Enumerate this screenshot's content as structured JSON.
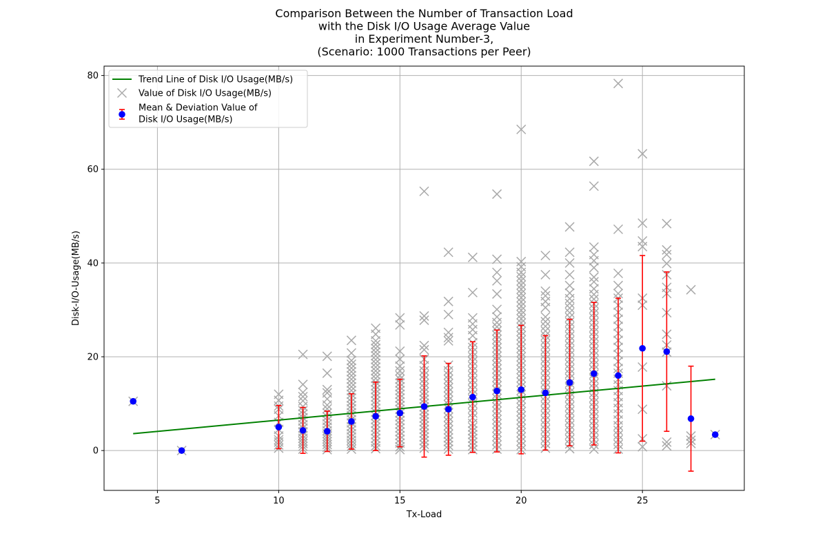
{
  "chart_data": {
    "type": "scatter",
    "title_lines": [
      "Comparison Between the Number of Transaction Load",
      "with the Disk I/O Usage Average Value",
      "in Experiment Number-3,",
      "(Scenario: 1000 Transactions per Peer)"
    ],
    "xlabel": "Tx-Load",
    "ylabel": "Disk-I/O-Usage(MB/s)",
    "xlim": [
      2.8,
      29.2
    ],
    "ylim": [
      -8.5,
      82
    ],
    "xticks": [
      5,
      10,
      15,
      20,
      25
    ],
    "yticks": [
      0,
      20,
      40,
      60,
      80
    ],
    "grid": true,
    "legend_position": "upper-left",
    "legend": [
      {
        "label": "Trend Line of Disk I/O Usage(MB/s)",
        "kind": "line",
        "color": "#008000"
      },
      {
        "label": "Value of Disk I/O Usage(MB/s)",
        "kind": "x-marker",
        "color": "#a9a9a9"
      },
      {
        "label_lines": [
          "Mean & Deviation Value of",
          "Disk I/O Usage(MB/s)"
        ],
        "kind": "errorbar",
        "color": "#0000ff",
        "error_color": "#ff0000"
      }
    ],
    "trend_line": {
      "x": [
        4,
        28
      ],
      "y": [
        3.6,
        15.2
      ],
      "color": "#008000"
    },
    "mean_deviation": [
      {
        "x": 4,
        "mean": 10.5,
        "std": 0
      },
      {
        "x": 6,
        "mean": 0,
        "std": 0
      },
      {
        "x": 10,
        "mean": 5.0,
        "std": 4.6
      },
      {
        "x": 11,
        "mean": 4.3,
        "std": 4.9
      },
      {
        "x": 12,
        "mean": 4.1,
        "std": 4.3
      },
      {
        "x": 13,
        "mean": 6.2,
        "std": 5.9
      },
      {
        "x": 14,
        "mean": 7.3,
        "std": 7.3
      },
      {
        "x": 15,
        "mean": 8.0,
        "std": 7.2
      },
      {
        "x": 16,
        "mean": 9.4,
        "std": 10.8
      },
      {
        "x": 17,
        "mean": 8.8,
        "std": 9.8
      },
      {
        "x": 18,
        "mean": 11.4,
        "std": 11.8
      },
      {
        "x": 19,
        "mean": 12.7,
        "std": 13.0
      },
      {
        "x": 20,
        "mean": 13.0,
        "std": 13.7
      },
      {
        "x": 21,
        "mean": 12.3,
        "std": 12.2
      },
      {
        "x": 22,
        "mean": 14.5,
        "std": 13.5
      },
      {
        "x": 23,
        "mean": 16.4,
        "std": 15.2
      },
      {
        "x": 24,
        "mean": 16.0,
        "std": 16.5
      },
      {
        "x": 25,
        "mean": 21.8,
        "std": 19.8
      },
      {
        "x": 26,
        "mean": 21.1,
        "std": 17.0
      },
      {
        "x": 27,
        "mean": 6.8,
        "std": 11.2
      },
      {
        "x": 28,
        "mean": 3.4,
        "std": 0
      }
    ],
    "value_points": [
      {
        "x": 4,
        "y": [
          10.5
        ]
      },
      {
        "x": 6,
        "y": [
          0
        ]
      },
      {
        "x": 10,
        "y": [
          0.5,
          1.2,
          1.8,
          2.3,
          3.1,
          4.5,
          6.0,
          7.4,
          8.8,
          9.5,
          10.7,
          12.0
        ]
      },
      {
        "x": 11,
        "y": [
          0.3,
          0.9,
          1.5,
          2.0,
          2.6,
          3.2,
          4.0,
          4.8,
          5.5,
          6.3,
          7.0,
          7.8,
          8.5,
          9.4,
          10.6,
          11.5,
          12.4,
          14.1,
          20.5
        ]
      },
      {
        "x": 12,
        "y": [
          0.2,
          0.7,
          1.3,
          1.9,
          2.5,
          3.0,
          3.6,
          4.2,
          5.0,
          5.7,
          6.4,
          7.2,
          8.0,
          8.9,
          9.7,
          11.0,
          12.3,
          13.0,
          16.5,
          20.1
        ]
      },
      {
        "x": 13,
        "y": [
          0.3,
          0.9,
          1.5,
          2.2,
          2.9,
          3.6,
          4.4,
          5.1,
          5.9,
          6.6,
          7.4,
          8.1,
          8.9,
          9.6,
          10.4,
          11.2,
          12.0,
          12.8,
          13.6,
          14.4,
          15.2,
          16.0,
          16.8,
          17.6,
          18.4,
          19.2,
          20.8,
          23.5
        ]
      },
      {
        "x": 14,
        "y": [
          0.4,
          1.0,
          1.8,
          2.6,
          3.4,
          4.2,
          5.0,
          5.8,
          6.6,
          7.4,
          8.2,
          9.0,
          9.8,
          10.6,
          11.4,
          12.2,
          13.0,
          13.8,
          14.6,
          15.4,
          16.2,
          17.0,
          17.8,
          18.6,
          19.4,
          20.2,
          21.0,
          21.8,
          22.6,
          23.4,
          24.8,
          26.1
        ]
      },
      {
        "x": 15,
        "y": [
          0.2,
          0.8,
          1.6,
          2.4,
          3.2,
          4.0,
          4.8,
          5.6,
          6.4,
          7.2,
          8.0,
          8.8,
          9.6,
          10.4,
          11.2,
          12.0,
          12.8,
          13.6,
          14.4,
          15.2,
          16.0,
          17.0,
          18.0,
          19.5,
          21.2,
          26.8,
          28.3
        ]
      },
      {
        "x": 16,
        "y": [
          0.5,
          1.3,
          2.1,
          2.9,
          3.7,
          4.5,
          5.3,
          6.1,
          6.9,
          7.7,
          8.5,
          9.3,
          10.1,
          10.9,
          11.7,
          12.5,
          13.4,
          14.3,
          15.2,
          16.1,
          17.0,
          18.1,
          19.5,
          21.5,
          22.4,
          27.8,
          28.7,
          55.3
        ]
      },
      {
        "x": 17,
        "y": [
          0.3,
          1.1,
          1.9,
          2.7,
          3.5,
          4.4,
          5.3,
          6.2,
          7.1,
          8.0,
          8.9,
          9.8,
          10.7,
          11.6,
          12.5,
          13.4,
          14.3,
          15.2,
          16.1,
          17.0,
          18.2,
          23.4,
          24.1,
          25.2,
          29.0,
          31.8,
          42.3
        ]
      },
      {
        "x": 18,
        "y": [
          0.2,
          1.0,
          1.8,
          2.6,
          3.4,
          4.2,
          5.0,
          5.8,
          7.0,
          8.0,
          9.0,
          10.0,
          11.0,
          12.0,
          13.0,
          14.0,
          15.0,
          16.0,
          17.0,
          18.0,
          19.0,
          20.0,
          21.0,
          22.0,
          23.0,
          24.5,
          25.8,
          27.0,
          28.3,
          33.7,
          41.2
        ]
      },
      {
        "x": 19,
        "y": [
          0.3,
          1.2,
          2.1,
          3.0,
          3.9,
          4.8,
          5.7,
          6.6,
          7.5,
          8.4,
          9.3,
          10.2,
          11.1,
          12.0,
          12.9,
          13.8,
          14.7,
          15.6,
          16.5,
          17.4,
          18.3,
          19.2,
          20.1,
          21.0,
          21.9,
          22.8,
          23.7,
          24.6,
          25.5,
          26.4,
          27.3,
          28.5,
          30.1,
          33.4,
          36.2,
          38.0,
          40.8,
          54.7
        ]
      },
      {
        "x": 20,
        "y": [
          0.2,
          1.1,
          2.0,
          2.9,
          3.8,
          4.7,
          5.6,
          6.5,
          7.4,
          8.3,
          9.2,
          10.1,
          11.0,
          11.9,
          12.8,
          13.7,
          14.6,
          15.5,
          16.4,
          17.3,
          18.2,
          19.1,
          20.0,
          20.9,
          21.8,
          22.7,
          23.6,
          24.5,
          25.4,
          26.3,
          27.2,
          28.1,
          29.0,
          29.9,
          30.8,
          31.7,
          32.6,
          33.5,
          34.4,
          35.3,
          36.2,
          37.1,
          38.0,
          39.2,
          40.3,
          68.5
        ]
      },
      {
        "x": 21,
        "y": [
          0.5,
          1.5,
          2.5,
          3.5,
          4.5,
          5.5,
          6.5,
          7.5,
          8.5,
          9.5,
          10.5,
          11.5,
          12.5,
          13.5,
          14.5,
          15.5,
          16.5,
          17.5,
          18.5,
          19.5,
          20.5,
          21.5,
          22.5,
          23.5,
          24.5,
          25.5,
          26.5,
          27.5,
          28.5,
          30.5,
          31.8,
          33.0,
          34.0,
          37.5,
          41.6
        ]
      },
      {
        "x": 22,
        "y": [
          0.4,
          1.4,
          2.4,
          3.4,
          4.4,
          5.4,
          6.4,
          7.4,
          8.4,
          9.4,
          10.4,
          11.4,
          12.4,
          13.4,
          14.4,
          15.4,
          16.4,
          17.4,
          18.4,
          19.4,
          20.4,
          21.4,
          22.4,
          23.4,
          24.4,
          25.4,
          26.4,
          27.4,
          28.4,
          29.4,
          30.4,
          31.4,
          32.4,
          33.6,
          35.2,
          37.5,
          40.0,
          42.3,
          47.7
        ]
      },
      {
        "x": 23,
        "y": [
          0.3,
          1.3,
          2.3,
          3.3,
          4.3,
          5.3,
          6.3,
          7.3,
          8.3,
          9.3,
          10.3,
          11.3,
          12.3,
          13.3,
          14.3,
          15.3,
          16.3,
          17.3,
          18.3,
          19.3,
          20.3,
          21.3,
          22.3,
          23.3,
          24.3,
          25.3,
          26.3,
          27.3,
          28.3,
          29.3,
          30.3,
          31.3,
          32.3,
          33.3,
          34.5,
          36.0,
          37.0,
          39.0,
          40.5,
          41.8,
          43.4,
          56.4,
          61.7
        ]
      },
      {
        "x": 24,
        "y": [
          0.3,
          1.3,
          2.3,
          3.3,
          4.3,
          5.3,
          6.5,
          7.8,
          9.0,
          10.2,
          11.5,
          12.8,
          14.0,
          15.2,
          16.5,
          17.5,
          19.0,
          20.5,
          22.0,
          23.5,
          25.0,
          26.5,
          28.0,
          29.5,
          31.0,
          32.5,
          33.5,
          35.2,
          37.8,
          47.2,
          78.3
        ]
      },
      {
        "x": 25,
        "y": [
          0.8,
          2.5,
          8.8,
          17.8,
          31.0,
          32.5,
          43.5,
          44.7,
          48.5,
          63.3
        ]
      },
      {
        "x": 26,
        "y": [
          1.0,
          1.8,
          13.8,
          21.0,
          22.5,
          24.8,
          29.4,
          33.5,
          34.8,
          37.5,
          39.9,
          41.8,
          42.8,
          48.4
        ]
      },
      {
        "x": 27,
        "y": [
          1.5,
          2.2,
          3.1,
          34.3
        ]
      },
      {
        "x": 28,
        "y": [
          3.4
        ]
      }
    ],
    "marker_color": "#a9a9a9",
    "mean_color": "#0000ff",
    "error_color": "#ff0000"
  }
}
